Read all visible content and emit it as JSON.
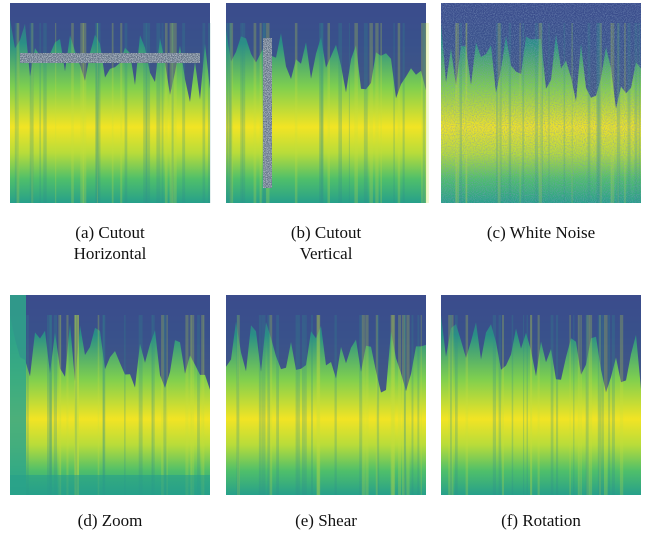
{
  "captions": [
    {
      "lines": [
        "(a) Cutout",
        "Horizontal"
      ]
    },
    {
      "lines": [
        "(b) Cutout",
        "Vertical"
      ]
    },
    {
      "lines": [
        "(c) White Noise"
      ]
    },
    {
      "lines": [
        "(d) Zoom"
      ]
    },
    {
      "lines": [
        "(e) Shear"
      ]
    },
    {
      "lines": [
        "(f) Rotation"
      ]
    }
  ]
}
